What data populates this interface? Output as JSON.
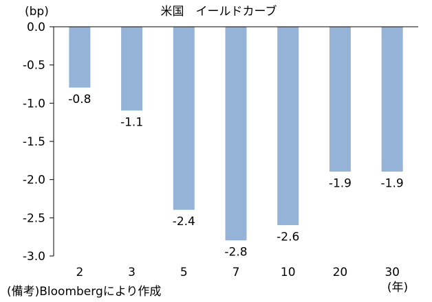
{
  "chart_data": {
    "type": "bar",
    "title": "米国　イールドカーブ",
    "ylabel": "(bp)",
    "xlabel": "(年)",
    "categories": [
      "2",
      "3",
      "5",
      "7",
      "10",
      "20",
      "30"
    ],
    "values": [
      -0.8,
      -1.1,
      -2.4,
      -2.8,
      -2.6,
      -1.9,
      -1.9
    ],
    "data_labels": [
      "-0.8",
      "-1.1",
      "-2.4",
      "-2.8",
      "-2.6",
      "-1.9",
      "-1.9"
    ],
    "y_ticks": [
      "0.0",
      "-0.5",
      "-1.0",
      "-1.5",
      "-2.0",
      "-2.5",
      "-3.0"
    ],
    "y_tick_values": [
      0,
      -0.5,
      -1.0,
      -1.5,
      -2.0,
      -2.5,
      -3.0
    ],
    "ylim": [
      -3.0,
      0.0
    ],
    "grid": false,
    "bar_color": "#94B3D7",
    "source_note": "(備考)Bloombergにより作成"
  }
}
